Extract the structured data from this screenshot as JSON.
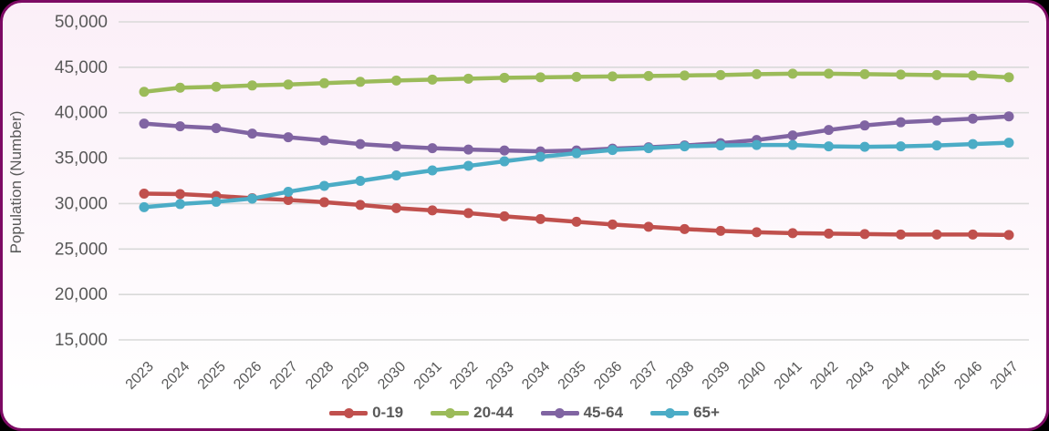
{
  "frame": {
    "border_color": "#7D0A64",
    "background_top": "#FBEFF8",
    "background_bottom": "#FFFFFF",
    "gridline_color": "#D9D9D9",
    "text_color": "#595959"
  },
  "chart_data": {
    "type": "line",
    "title": "",
    "xlabel": "",
    "ylabel": "Population (Number)",
    "x": [
      2023,
      2024,
      2025,
      2026,
      2027,
      2028,
      2029,
      2030,
      2031,
      2032,
      2033,
      2034,
      2035,
      2036,
      2037,
      2038,
      2039,
      2040,
      2041,
      2042,
      2043,
      2044,
      2045,
      2046,
      2047
    ],
    "ylim": [
      15000,
      50000
    ],
    "ytick_step": 5000,
    "ytick_labels": [
      "15,000",
      "20,000",
      "25,000",
      "30,000",
      "35,000",
      "40,000",
      "45,000",
      "50,000"
    ],
    "grid": true,
    "legend_position": "bottom",
    "marker": "circle",
    "series": [
      {
        "name": "0-19",
        "color": "#C0504D",
        "values": [
          31100,
          31050,
          30850,
          30600,
          30400,
          30150,
          29850,
          29500,
          29250,
          28950,
          28600,
          28300,
          28000,
          27700,
          27450,
          27200,
          27000,
          26850,
          26750,
          26700,
          26650,
          26600,
          26600,
          26600,
          26550
        ]
      },
      {
        "name": "20-44",
        "color": "#9BBB59",
        "values": [
          42300,
          42750,
          42850,
          43000,
          43100,
          43250,
          43400,
          43550,
          43650,
          43750,
          43850,
          43900,
          43950,
          44000,
          44050,
          44100,
          44150,
          44250,
          44300,
          44300,
          44250,
          44200,
          44150,
          44100,
          43900
        ]
      },
      {
        "name": "45-64",
        "color": "#8064A2",
        "values": [
          38800,
          38500,
          38300,
          37700,
          37300,
          36950,
          36550,
          36300,
          36100,
          35950,
          35850,
          35750,
          35850,
          36050,
          36200,
          36400,
          36650,
          37000,
          37500,
          38100,
          38600,
          38950,
          39150,
          39350,
          39600
        ]
      },
      {
        "name": "65+",
        "color": "#4BACC6",
        "values": [
          29600,
          29950,
          30200,
          30550,
          31300,
          31950,
          32500,
          33100,
          33650,
          34150,
          34650,
          35150,
          35550,
          35900,
          36100,
          36300,
          36400,
          36450,
          36450,
          36300,
          36250,
          36300,
          36400,
          36550,
          36700
        ]
      }
    ]
  }
}
